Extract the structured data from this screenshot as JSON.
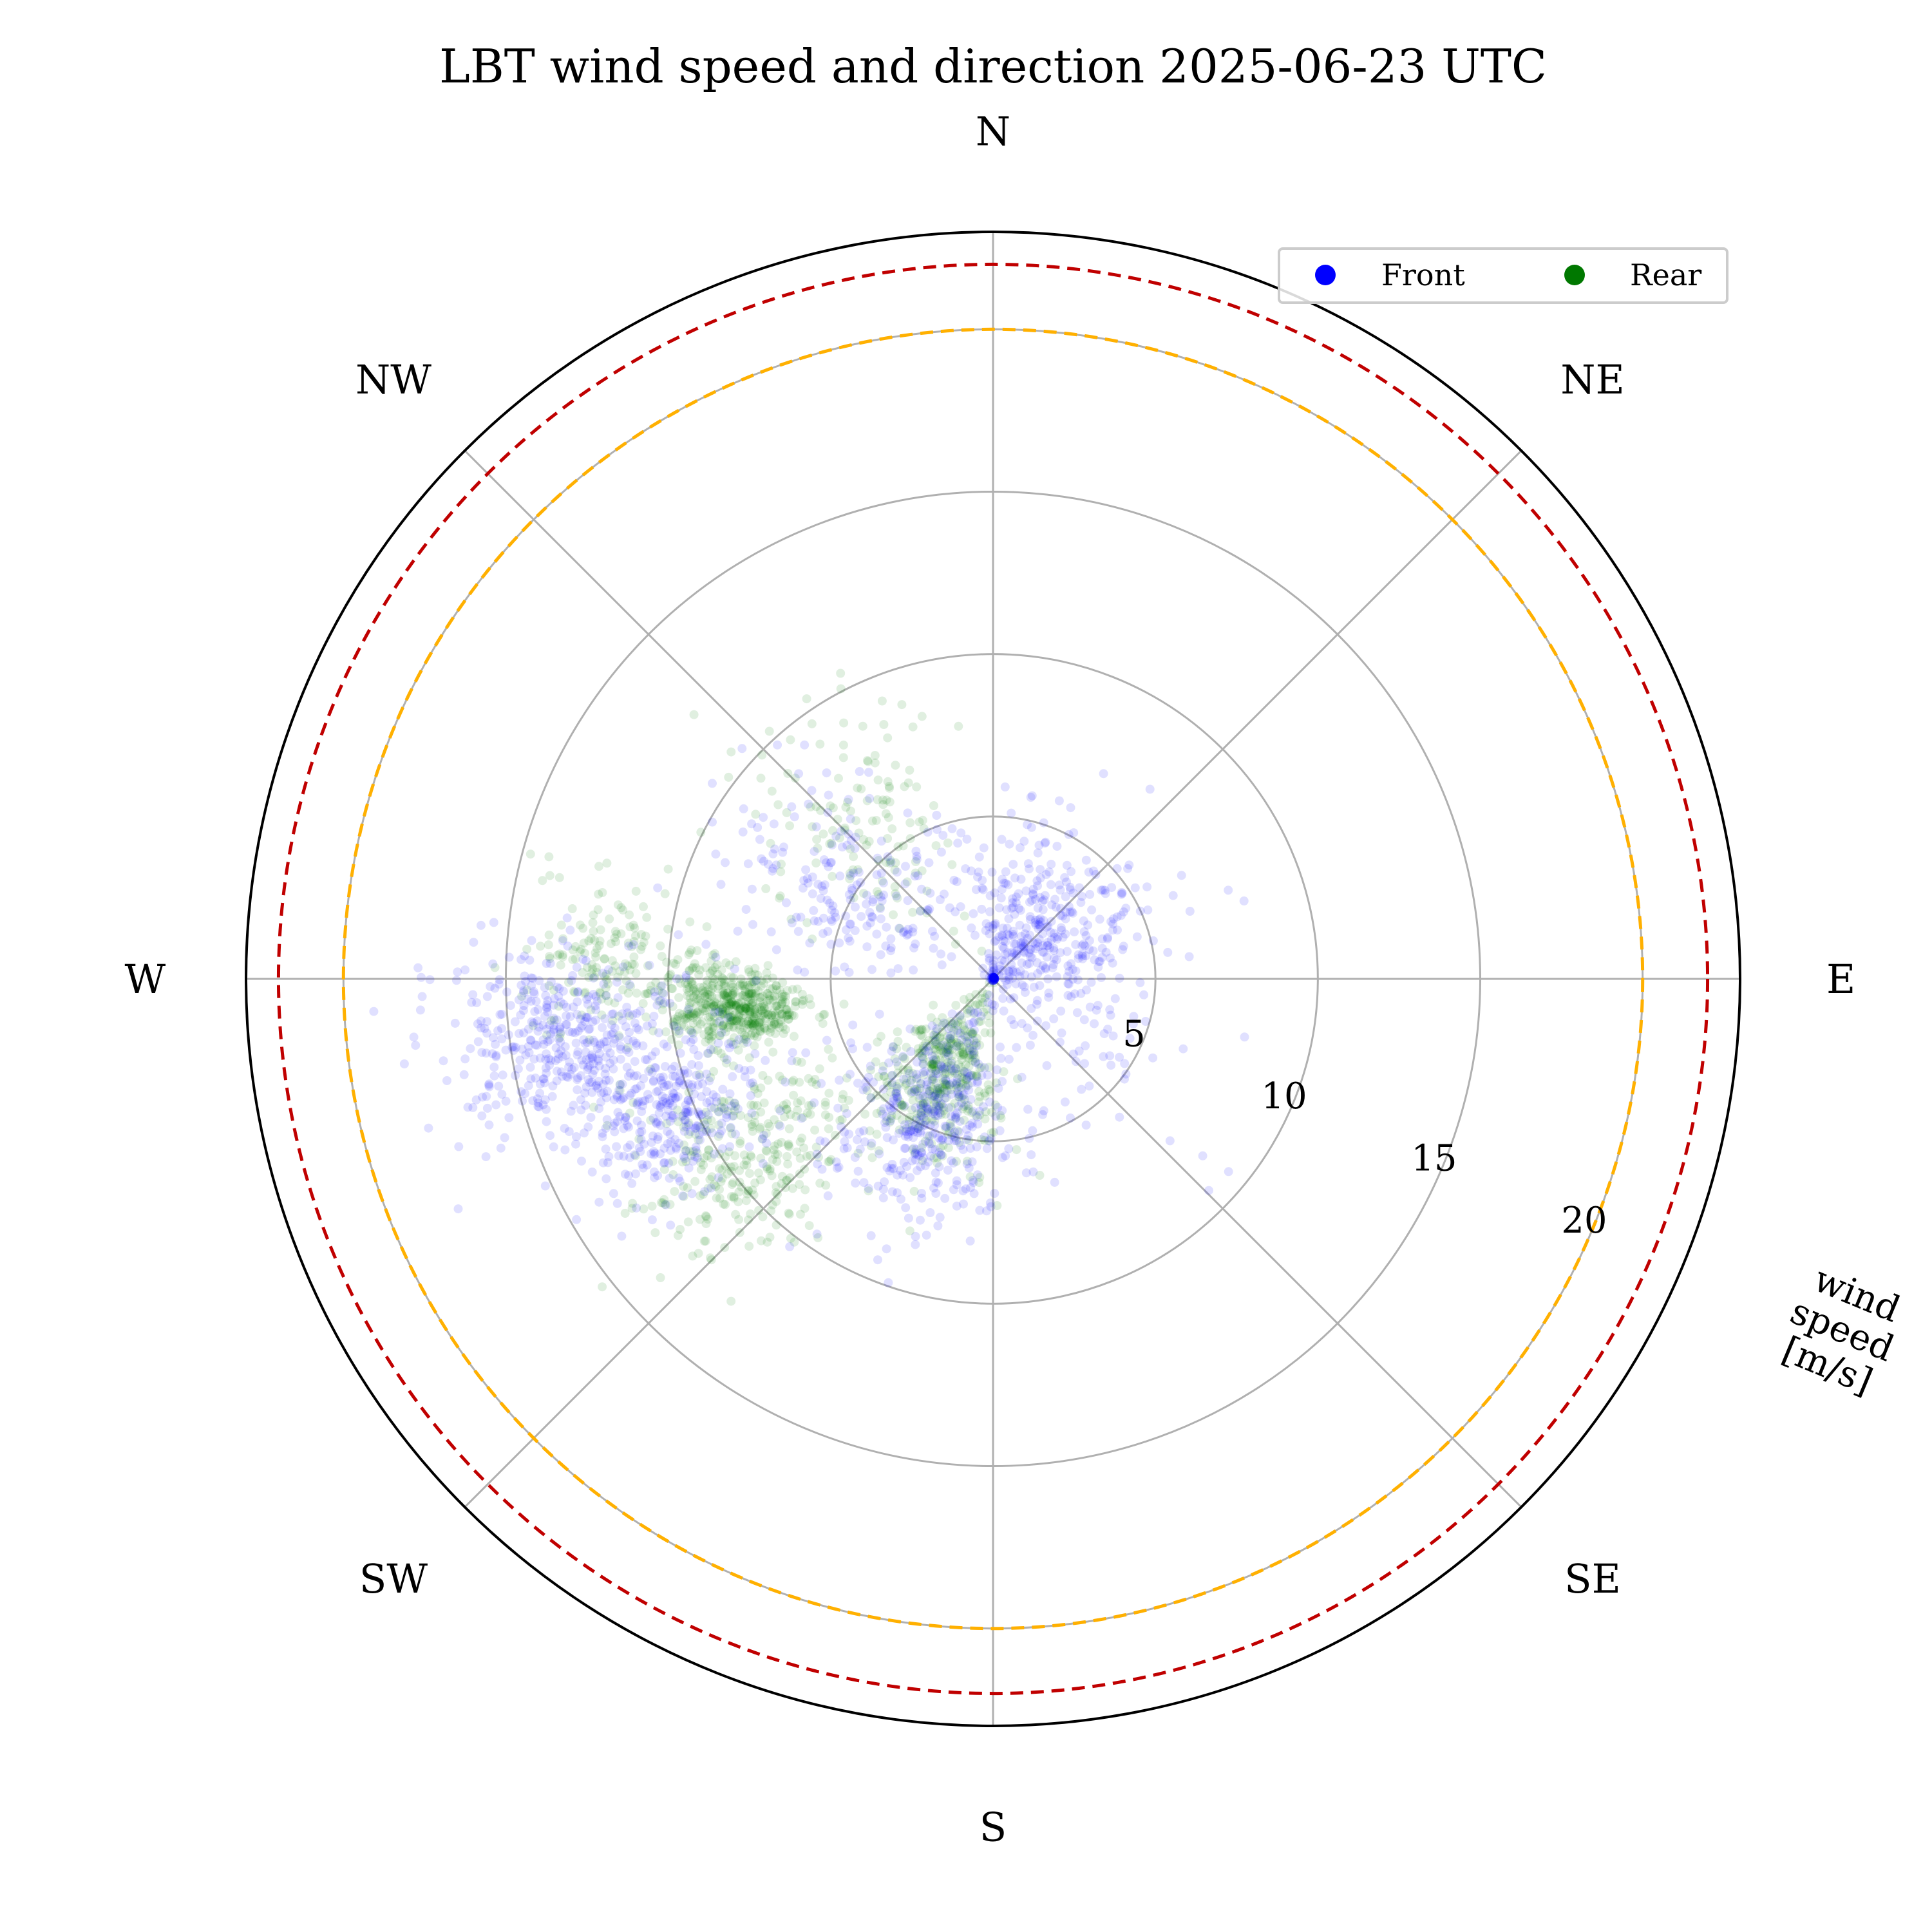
{
  "chart_data": {
    "type": "scatter",
    "polar": true,
    "title": "LBT wind speed and direction 2025-06-23 UTC",
    "direction_labels": [
      "N",
      "NE",
      "E",
      "SE",
      "S",
      "SW",
      "W",
      "NW"
    ],
    "theta_zero": "north",
    "theta_direction": "clockwise",
    "radial_axis": {
      "label": "wind\nspeed\n[m/s]",
      "ticks": [
        5,
        10,
        15,
        20
      ],
      "tick_labels": [
        "5",
        "10",
        "15",
        "20"
      ],
      "rlim": [
        0,
        23
      ],
      "label_angle_deg": 112.5
    },
    "grid": true,
    "reference_circles": [
      {
        "r": 20,
        "color": "#ffb000",
        "style": "dashed"
      },
      {
        "r": 22,
        "color": "#c00000",
        "style": "dashed"
      }
    ],
    "legend": {
      "placement": "top-right",
      "entries": [
        "Front",
        "Rear"
      ]
    },
    "series": [
      {
        "name": "Front",
        "color": "#0000ff",
        "clusters": [
          {
            "dir_deg": 45,
            "speed": 2.5,
            "spread_dir": 40,
            "spread_speed": 1.6,
            "count": 420
          },
          {
            "dir_deg": 205,
            "speed": 5.0,
            "spread_dir": 14,
            "spread_speed": 1.6,
            "count": 360
          },
          {
            "dir_deg": 248,
            "speed": 11.0,
            "spread_dir": 7,
            "spread_speed": 1.4,
            "count": 320
          },
          {
            "dir_deg": 262,
            "speed": 13.5,
            "spread_dir": 6,
            "spread_speed": 1.8,
            "count": 380
          },
          {
            "dir_deg": 300,
            "speed": 5.5,
            "spread_dir": 14,
            "spread_speed": 2.0,
            "count": 180
          },
          {
            "dir_deg": 160,
            "speed": 3.5,
            "spread_dir": 60,
            "spread_speed": 2.5,
            "count": 120
          }
        ]
      },
      {
        "name": "Rear",
        "color": "#007800",
        "clusters": [
          {
            "dir_deg": 210,
            "speed": 3.5,
            "spread_dir": 16,
            "spread_speed": 1.4,
            "count": 420
          },
          {
            "dir_deg": 262,
            "speed": 7.3,
            "spread_dir": 4,
            "spread_speed": 0.7,
            "count": 260
          },
          {
            "dir_deg": 266,
            "speed": 8.8,
            "spread_dir": 4,
            "spread_speed": 0.8,
            "count": 240
          },
          {
            "dir_deg": 235,
            "speed": 9.5,
            "spread_dir": 8,
            "spread_speed": 1.8,
            "count": 300
          },
          {
            "dir_deg": 272,
            "speed": 12.0,
            "spread_dir": 6,
            "spread_speed": 1.2,
            "count": 160
          },
          {
            "dir_deg": 320,
            "speed": 6.5,
            "spread_dir": 12,
            "spread_speed": 2.0,
            "count": 140
          }
        ]
      }
    ]
  }
}
